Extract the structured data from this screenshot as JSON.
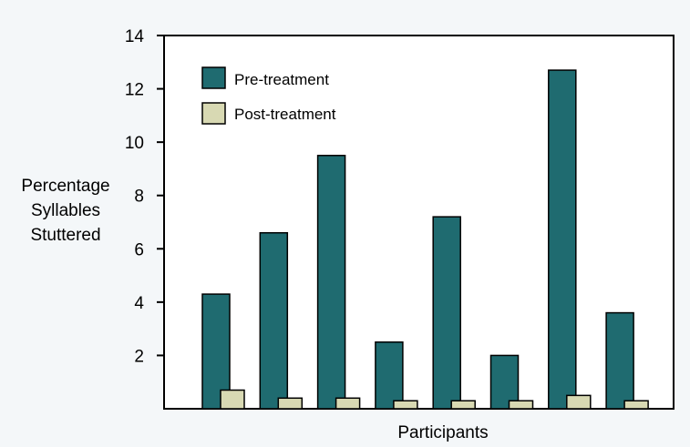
{
  "chart_data": {
    "type": "bar",
    "title": "",
    "xlabel": "Participants",
    "ylabel": [
      "Percentage",
      "Syllables",
      "Stuttered"
    ],
    "ylim": [
      0,
      14
    ],
    "yticks": [
      2,
      4,
      6,
      8,
      10,
      12,
      14
    ],
    "categories": [
      "",
      "",
      "",
      "",
      "",
      "",
      "",
      ""
    ],
    "series": [
      {
        "name": "Pre-treatment",
        "color": "#1f6b70",
        "values": [
          4.3,
          6.6,
          9.5,
          2.5,
          7.2,
          2.0,
          12.7,
          3.6
        ]
      },
      {
        "name": "Post-treatment",
        "color": "#d8d9b3",
        "values": [
          0.7,
          0.4,
          0.4,
          0.3,
          0.3,
          0.3,
          0.5,
          0.3
        ]
      }
    ],
    "legend_position": "top-left",
    "grid": false
  }
}
